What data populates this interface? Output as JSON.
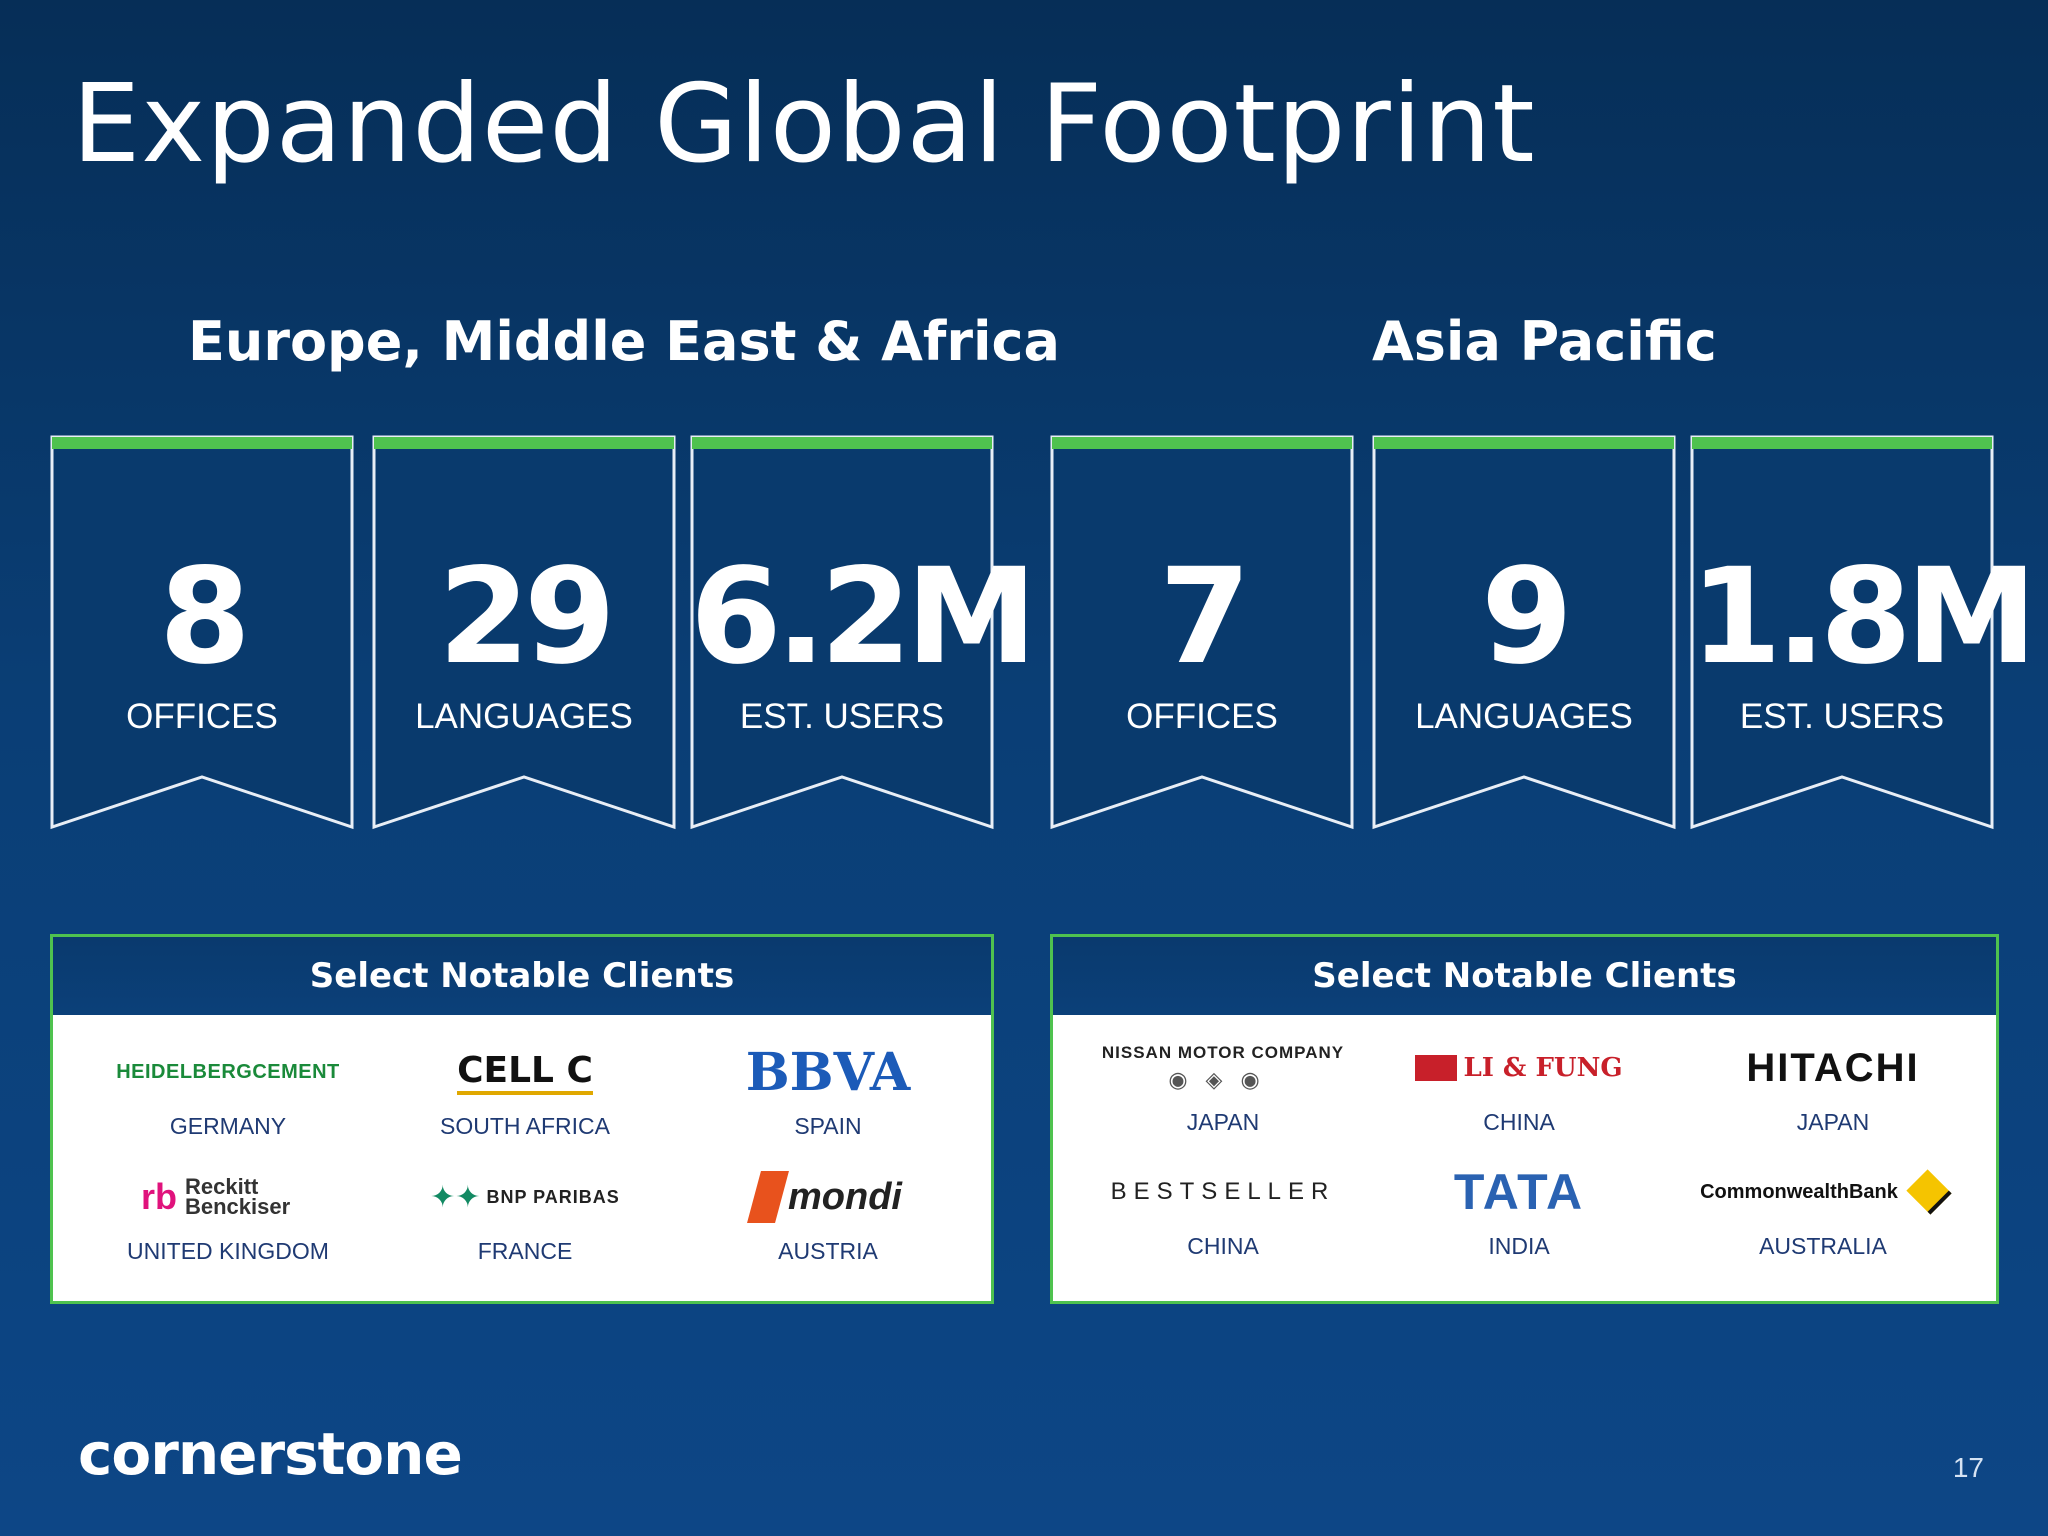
{
  "title": "Expanded Global Footprint",
  "colors": {
    "accent_green": "#4fc24f",
    "background": "#0a3e75",
    "client_text": "#1f3a73"
  },
  "regions": [
    {
      "heading": "Europe, Middle East & Africa",
      "stats": [
        {
          "value": "8",
          "label": "OFFICES"
        },
        {
          "value": "29",
          "label": "LANGUAGES"
        },
        {
          "value": "6.2M",
          "label": "EST. USERS"
        }
      ],
      "clients_heading": "Select Notable Clients",
      "clients": [
        {
          "logo_text": "HEIDELBERGCEMENT",
          "country": "GERMANY"
        },
        {
          "logo_text": "CELL C",
          "country": "SOUTH AFRICA"
        },
        {
          "logo_text": "BBVA",
          "country": "SPAIN"
        },
        {
          "logo_text": "Reckitt Benckiser",
          "country": "UNITED KINGDOM"
        },
        {
          "logo_text": "BNP PARIBAS",
          "country": "FRANCE"
        },
        {
          "logo_text": "mondi",
          "country": "AUSTRIA"
        }
      ]
    },
    {
      "heading": "Asia Pacific",
      "stats": [
        {
          "value": "7",
          "label": "OFFICES"
        },
        {
          "value": "9",
          "label": "LANGUAGES"
        },
        {
          "value": "1.8M",
          "label": "EST. USERS"
        }
      ],
      "clients_heading": "Select Notable Clients",
      "clients": [
        {
          "logo_text": "NISSAN MOTOR COMPANY",
          "country": "JAPAN"
        },
        {
          "logo_text": "LI & FUNG",
          "country": "CHINA"
        },
        {
          "logo_text": "HITACHI",
          "country": "JAPAN"
        },
        {
          "logo_text": "BESTSELLER",
          "country": "CHINA"
        },
        {
          "logo_text": "TATA",
          "country": "INDIA"
        },
        {
          "logo_text": "CommonwealthBank",
          "country": "AUSTRALIA"
        }
      ]
    }
  ],
  "footer": {
    "logo_text": "cornerstone",
    "page_number": "17"
  }
}
